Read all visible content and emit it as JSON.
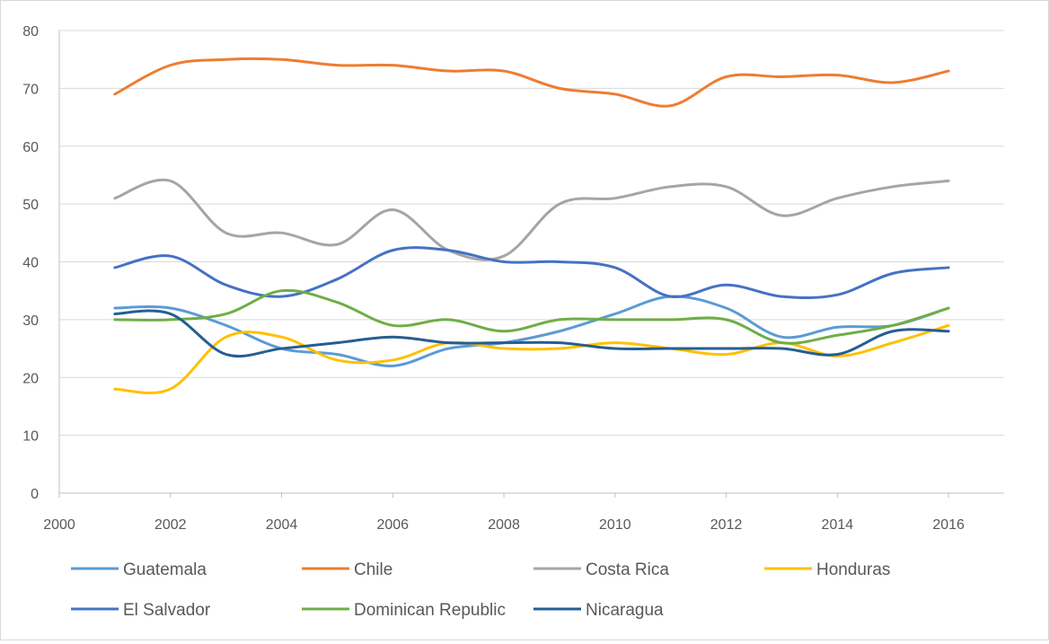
{
  "chart_data": {
    "type": "line",
    "title": "",
    "xlabel": "",
    "ylabel": "",
    "xlim": [
      2000,
      2017
    ],
    "ylim": [
      0,
      80
    ],
    "x_ticks": [
      2000,
      2002,
      2004,
      2006,
      2008,
      2010,
      2012,
      2014,
      2016
    ],
    "y_ticks": [
      0,
      10,
      20,
      30,
      40,
      50,
      60,
      70,
      80
    ],
    "grid": "horizontal",
    "smooth": true,
    "legend_position": "bottom",
    "x": [
      2001,
      2002,
      2003,
      2004,
      2005,
      2006,
      2007,
      2008,
      2009,
      2010,
      2011,
      2012,
      2013,
      2014,
      2015,
      2016
    ],
    "series": [
      {
        "name": "Guatemala",
        "color": "#5B9BD5",
        "values": [
          32,
          32,
          29,
          25,
          24,
          22,
          25,
          26,
          28,
          31,
          34,
          32,
          27,
          28.7,
          29,
          32
        ]
      },
      {
        "name": "Chile",
        "color": "#ED7D31",
        "values": [
          69,
          74,
          75,
          75,
          74,
          74,
          73,
          73,
          70,
          69,
          67,
          72,
          72,
          72.3,
          71,
          73
        ]
      },
      {
        "name": "Costa Rica",
        "color": "#A5A5A5",
        "values": [
          51,
          54,
          45,
          45,
          43,
          49,
          42,
          41,
          50,
          51,
          53,
          53,
          48,
          51,
          53,
          54
        ]
      },
      {
        "name": "Honduras",
        "color": "#FFC000",
        "values": [
          18,
          18,
          27,
          27,
          23,
          23,
          26,
          25,
          25,
          26,
          25,
          24,
          26,
          23.7,
          26,
          29
        ]
      },
      {
        "name": "El Salvador",
        "color": "#4472C4",
        "values": [
          39,
          41,
          36,
          34,
          37,
          42,
          42,
          40,
          40,
          39,
          34,
          36,
          34,
          34.3,
          38,
          39
        ]
      },
      {
        "name": "Dominican Republic",
        "color": "#70AD47",
        "values": [
          30,
          30,
          31,
          35,
          33,
          29,
          30,
          28,
          30,
          30,
          30,
          30,
          26,
          27.3,
          29,
          32
        ]
      },
      {
        "name": "Nicaragua",
        "color": "#255E91",
        "values": [
          31,
          31,
          24,
          25,
          26,
          27,
          26,
          26,
          26,
          25,
          25,
          25,
          25,
          24,
          28,
          28
        ]
      }
    ]
  }
}
